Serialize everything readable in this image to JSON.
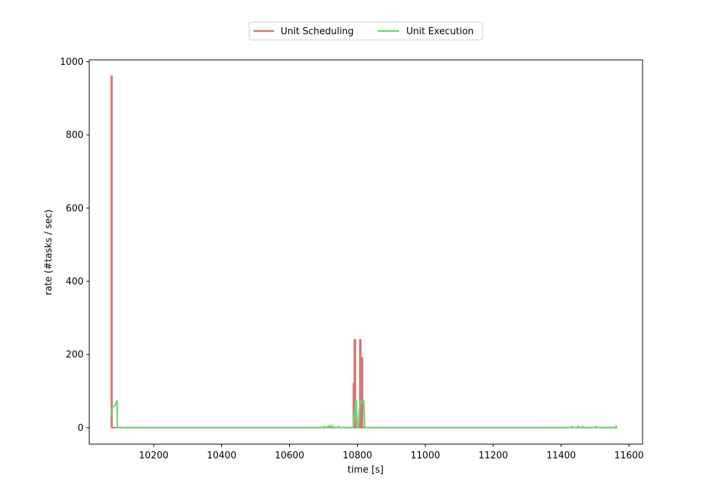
{
  "colors": {
    "scheduling": "#d67676",
    "execution": "#77d277",
    "axis": "#000000",
    "legend_border": "#cccccc",
    "background": "#ffffff"
  },
  "chart_data": {
    "type": "line",
    "title": "",
    "xlabel": "time [s]",
    "ylabel": "rate (#tasks / sec)",
    "xlim": [
      10010,
      11640
    ],
    "ylim": [
      -45,
      1005
    ],
    "xticks": [
      10200,
      10400,
      10600,
      10800,
      11000,
      11200,
      11400,
      11600
    ],
    "yticks": [
      0,
      200,
      400,
      600,
      800,
      1000
    ],
    "grid": false,
    "legend": {
      "placement": "top-center, above plot",
      "columns": 2
    },
    "series": [
      {
        "name": "Unit Scheduling",
        "color": "#d67676",
        "points": [
          [
            10075,
            0
          ],
          [
            10075,
            960
          ],
          [
            10077,
            960
          ],
          [
            10077,
            0
          ],
          [
            10788,
            0
          ],
          [
            10788,
            120
          ],
          [
            10790,
            120
          ],
          [
            10790,
            0
          ],
          [
            10791,
            0
          ],
          [
            10791,
            240
          ],
          [
            10794,
            240
          ],
          [
            10794,
            0
          ],
          [
            10807,
            0
          ],
          [
            10807,
            240
          ],
          [
            10810,
            240
          ],
          [
            10810,
            0
          ],
          [
            10812,
            0
          ],
          [
            10812,
            190
          ],
          [
            10815,
            190
          ],
          [
            10815,
            0
          ],
          [
            11565,
            0
          ]
        ]
      },
      {
        "name": "Unit Execution",
        "color": "#77d277",
        "points": [
          [
            10075,
            30
          ],
          [
            10077,
            55
          ],
          [
            10082,
            58
          ],
          [
            10086,
            62
          ],
          [
            10088,
            65
          ],
          [
            10090,
            72
          ],
          [
            10092,
            72
          ],
          [
            10093,
            0
          ],
          [
            10700,
            0
          ],
          [
            10702,
            3
          ],
          [
            10704,
            0
          ],
          [
            10712,
            0
          ],
          [
            10714,
            4
          ],
          [
            10716,
            0
          ],
          [
            10722,
            6
          ],
          [
            10724,
            0
          ],
          [
            10730,
            4
          ],
          [
            10732,
            0
          ],
          [
            10742,
            0
          ],
          [
            10744,
            3
          ],
          [
            10746,
            0
          ],
          [
            10788,
            0
          ],
          [
            10790,
            40
          ],
          [
            10792,
            20
          ],
          [
            10795,
            75
          ],
          [
            10797,
            75
          ],
          [
            10799,
            0
          ],
          [
            10803,
            0
          ],
          [
            10805,
            40
          ],
          [
            10808,
            72
          ],
          [
            10811,
            72
          ],
          [
            10813,
            68
          ],
          [
            10816,
            70
          ],
          [
            10819,
            72
          ],
          [
            10822,
            0
          ],
          [
            11430,
            0
          ],
          [
            11432,
            3
          ],
          [
            11434,
            0
          ],
          [
            11448,
            0
          ],
          [
            11450,
            4
          ],
          [
            11452,
            0
          ],
          [
            11462,
            0
          ],
          [
            11464,
            3
          ],
          [
            11466,
            0
          ],
          [
            11500,
            0
          ],
          [
            11502,
            3
          ],
          [
            11504,
            0
          ],
          [
            11560,
            0
          ],
          [
            11562,
            4
          ],
          [
            11564,
            0
          ]
        ]
      }
    ]
  }
}
